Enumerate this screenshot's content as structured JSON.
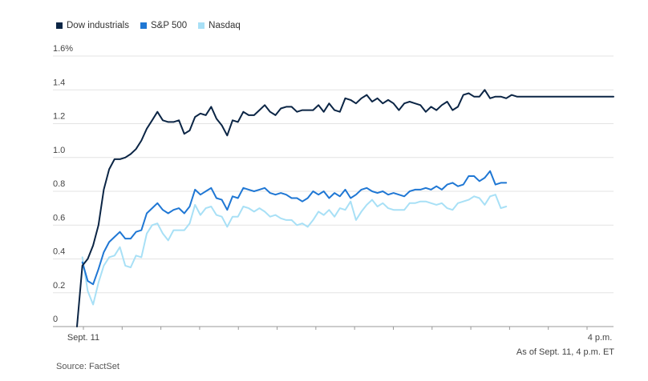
{
  "legend": [
    {
      "name": "Dow industrials",
      "color": "#0b2545"
    },
    {
      "name": "S&P 500",
      "color": "#1f77d4"
    },
    {
      "name": "Nasdaq",
      "color": "#a8e0f6"
    }
  ],
  "note": "As of Sept. 11, 4 p.m. ET",
  "source": "Source: FactSet",
  "chart_data": {
    "type": "line",
    "title": "",
    "xlabel": "",
    "ylabel": "",
    "ylim": [
      0,
      1.6
    ],
    "y_ticks": [
      "0",
      "0.2",
      "0.4",
      "0.6",
      "0.8",
      "1.0",
      "1.2",
      "1.4",
      "1.6%"
    ],
    "y_tick_values": [
      0,
      0.2,
      0.4,
      0.6,
      0.8,
      1.0,
      1.2,
      1.4,
      1.6
    ],
    "x_tick_labels": [
      "Sept. 11",
      "4 p.m."
    ],
    "x_range": [
      0,
      1
    ],
    "grid": true,
    "legend_position": "top-left",
    "series": [
      {
        "name": "Dow industrials",
        "color": "#0b2545",
        "x": [
          0,
          0.01,
          0.02,
          0.03,
          0.04,
          0.05,
          0.06,
          0.07,
          0.08,
          0.09,
          0.1,
          0.11,
          0.12,
          0.13,
          0.14,
          0.15,
          0.16,
          0.17,
          0.18,
          0.19,
          0.2,
          0.21,
          0.22,
          0.23,
          0.24,
          0.25,
          0.26,
          0.27,
          0.28,
          0.29,
          0.3,
          0.31,
          0.32,
          0.33,
          0.34,
          0.35,
          0.36,
          0.37,
          0.38,
          0.39,
          0.4,
          0.41,
          0.42,
          0.43,
          0.44,
          0.45,
          0.46,
          0.47,
          0.48,
          0.49,
          0.5,
          0.51,
          0.52,
          0.53,
          0.54,
          0.55,
          0.56,
          0.57,
          0.58,
          0.59,
          0.6,
          0.61,
          0.62,
          0.63,
          0.64,
          0.65,
          0.66,
          0.67,
          0.68,
          0.69,
          0.7,
          0.71,
          0.72,
          0.73,
          0.74,
          0.75,
          0.76,
          0.77,
          0.78,
          0.79,
          0.8,
          0.81,
          0.82,
          0.83,
          0.84,
          0.85,
          0.86,
          0.87,
          0.88,
          0.89,
          0.9,
          0.91,
          0.92,
          0.93,
          0.94,
          0.95,
          0.96,
          0.97,
          0.98,
          0.99,
          1.0
        ],
        "values": [
          0,
          0.36,
          0.4,
          0.48,
          0.6,
          0.81,
          0.93,
          0.99,
          0.99,
          1.0,
          1.02,
          1.05,
          1.1,
          1.17,
          1.22,
          1.27,
          1.22,
          1.21,
          1.21,
          1.22,
          1.14,
          1.16,
          1.24,
          1.26,
          1.25,
          1.3,
          1.23,
          1.19,
          1.13,
          1.22,
          1.21,
          1.27,
          1.25,
          1.25,
          1.28,
          1.31,
          1.27,
          1.25,
          1.29,
          1.3,
          1.3,
          1.27,
          1.28,
          1.28,
          1.28,
          1.31,
          1.27,
          1.32,
          1.28,
          1.27,
          1.35,
          1.34,
          1.32,
          1.35,
          1.37,
          1.33,
          1.35,
          1.32,
          1.34,
          1.32,
          1.28,
          1.32,
          1.33,
          1.32,
          1.31,
          1.27,
          1.3,
          1.28,
          1.31,
          1.33,
          1.28,
          1.3,
          1.37,
          1.38,
          1.36,
          1.36,
          1.4,
          1.35,
          1.36,
          1.36,
          1.35,
          1.37,
          1.36,
          1.36,
          1.36,
          1.36,
          1.36,
          1.36,
          1.36,
          1.36,
          1.36,
          1.36,
          1.36,
          1.36,
          1.36,
          1.36,
          1.36,
          1.36,
          1.36,
          1.36,
          1.36
        ]
      },
      {
        "name": "S&P 500",
        "color": "#1f77d4",
        "x": [
          0.01,
          0.02,
          0.03,
          0.04,
          0.05,
          0.06,
          0.07,
          0.08,
          0.09,
          0.1,
          0.11,
          0.12,
          0.13,
          0.14,
          0.15,
          0.16,
          0.17,
          0.18,
          0.19,
          0.2,
          0.21,
          0.22,
          0.23,
          0.24,
          0.25,
          0.26,
          0.27,
          0.28,
          0.29,
          0.3,
          0.31,
          0.32,
          0.33,
          0.34,
          0.35,
          0.36,
          0.37,
          0.38,
          0.39,
          0.4,
          0.41,
          0.42,
          0.43,
          0.44,
          0.45,
          0.46,
          0.47,
          0.48,
          0.49,
          0.5,
          0.51,
          0.52,
          0.53,
          0.54,
          0.55,
          0.56,
          0.57,
          0.58,
          0.59,
          0.6,
          0.61,
          0.62,
          0.63,
          0.64,
          0.65,
          0.66,
          0.67,
          0.68,
          0.69,
          0.7,
          0.71,
          0.72,
          0.73,
          0.74,
          0.75,
          0.76,
          0.77,
          0.78,
          0.79,
          0.8
        ],
        "values": [
          0.38,
          0.27,
          0.25,
          0.34,
          0.44,
          0.5,
          0.53,
          0.56,
          0.52,
          0.52,
          0.56,
          0.57,
          0.67,
          0.7,
          0.73,
          0.69,
          0.67,
          0.69,
          0.7,
          0.67,
          0.71,
          0.81,
          0.78,
          0.8,
          0.82,
          0.76,
          0.75,
          0.69,
          0.77,
          0.76,
          0.82,
          0.81,
          0.8,
          0.81,
          0.82,
          0.79,
          0.78,
          0.79,
          0.78,
          0.76,
          0.76,
          0.74,
          0.76,
          0.8,
          0.78,
          0.8,
          0.76,
          0.79,
          0.77,
          0.81,
          0.76,
          0.78,
          0.81,
          0.82,
          0.8,
          0.79,
          0.8,
          0.78,
          0.79,
          0.78,
          0.77,
          0.8,
          0.81,
          0.81,
          0.82,
          0.81,
          0.83,
          0.81,
          0.84,
          0.85,
          0.83,
          0.84,
          0.89,
          0.89,
          0.86,
          0.88,
          0.92,
          0.84,
          0.85,
          0.85
        ]
      },
      {
        "name": "Nasdaq",
        "color": "#a8e0f6",
        "x": [
          0.01,
          0.02,
          0.03,
          0.04,
          0.05,
          0.06,
          0.07,
          0.08,
          0.09,
          0.1,
          0.11,
          0.12,
          0.13,
          0.14,
          0.15,
          0.16,
          0.17,
          0.18,
          0.19,
          0.2,
          0.21,
          0.22,
          0.23,
          0.24,
          0.25,
          0.26,
          0.27,
          0.28,
          0.29,
          0.3,
          0.31,
          0.32,
          0.33,
          0.34,
          0.35,
          0.36,
          0.37,
          0.38,
          0.39,
          0.4,
          0.41,
          0.42,
          0.43,
          0.44,
          0.45,
          0.46,
          0.47,
          0.48,
          0.49,
          0.5,
          0.51,
          0.52,
          0.53,
          0.54,
          0.55,
          0.56,
          0.57,
          0.58,
          0.59,
          0.6,
          0.61,
          0.62,
          0.63,
          0.64,
          0.65,
          0.66,
          0.67,
          0.68,
          0.69,
          0.7,
          0.71,
          0.72,
          0.73,
          0.74,
          0.75,
          0.76,
          0.77,
          0.78,
          0.79,
          0.8
        ],
        "values": [
          0.41,
          0.21,
          0.13,
          0.26,
          0.36,
          0.41,
          0.42,
          0.47,
          0.36,
          0.35,
          0.42,
          0.41,
          0.55,
          0.6,
          0.61,
          0.55,
          0.51,
          0.57,
          0.57,
          0.57,
          0.61,
          0.72,
          0.66,
          0.7,
          0.71,
          0.66,
          0.65,
          0.59,
          0.65,
          0.65,
          0.71,
          0.7,
          0.68,
          0.7,
          0.68,
          0.65,
          0.66,
          0.64,
          0.63,
          0.63,
          0.6,
          0.61,
          0.59,
          0.63,
          0.68,
          0.66,
          0.69,
          0.65,
          0.7,
          0.69,
          0.74,
          0.63,
          0.68,
          0.72,
          0.75,
          0.71,
          0.73,
          0.7,
          0.69,
          0.69,
          0.69,
          0.73,
          0.73,
          0.74,
          0.74,
          0.73,
          0.72,
          0.73,
          0.7,
          0.69,
          0.73,
          0.74,
          0.75,
          0.77,
          0.76,
          0.72,
          0.77,
          0.78,
          0.7,
          0.71
        ]
      }
    ]
  }
}
